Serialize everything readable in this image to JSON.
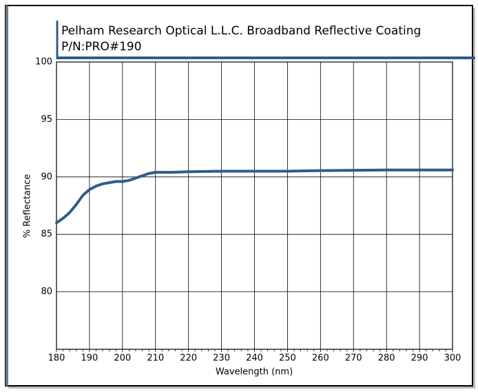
{
  "chart_data": {
    "type": "line",
    "title": "Pelham Research Optical L.L.C. Broadband Reflective Coating",
    "subtitle": "P/N:PRO#190",
    "x_label": "Wavelength (nm)",
    "y_label": "% Reflectance",
    "x": [
      180,
      182,
      184,
      186,
      188,
      190,
      192,
      194,
      196,
      198,
      200,
      202,
      204,
      206,
      208,
      210,
      215,
      220,
      230,
      250,
      260,
      280,
      300
    ],
    "series": [
      {
        "name": "Reflectance",
        "color": "#2f5b8c",
        "values": [
          86.0,
          86.4,
          86.9,
          87.6,
          88.4,
          88.9,
          89.2,
          89.4,
          89.5,
          89.6,
          89.6,
          89.7,
          89.9,
          90.1,
          90.3,
          90.4,
          90.4,
          90.45,
          90.5,
          90.5,
          90.55,
          90.6,
          90.6
        ]
      }
    ],
    "xlim": [
      180,
      300
    ],
    "xticks": [
      180,
      190,
      200,
      210,
      220,
      230,
      240,
      250,
      260,
      270,
      280,
      290,
      300
    ],
    "ylim": [
      75,
      100
    ],
    "yticks": [
      80,
      85,
      90,
      95,
      100
    ],
    "grid": true
  }
}
